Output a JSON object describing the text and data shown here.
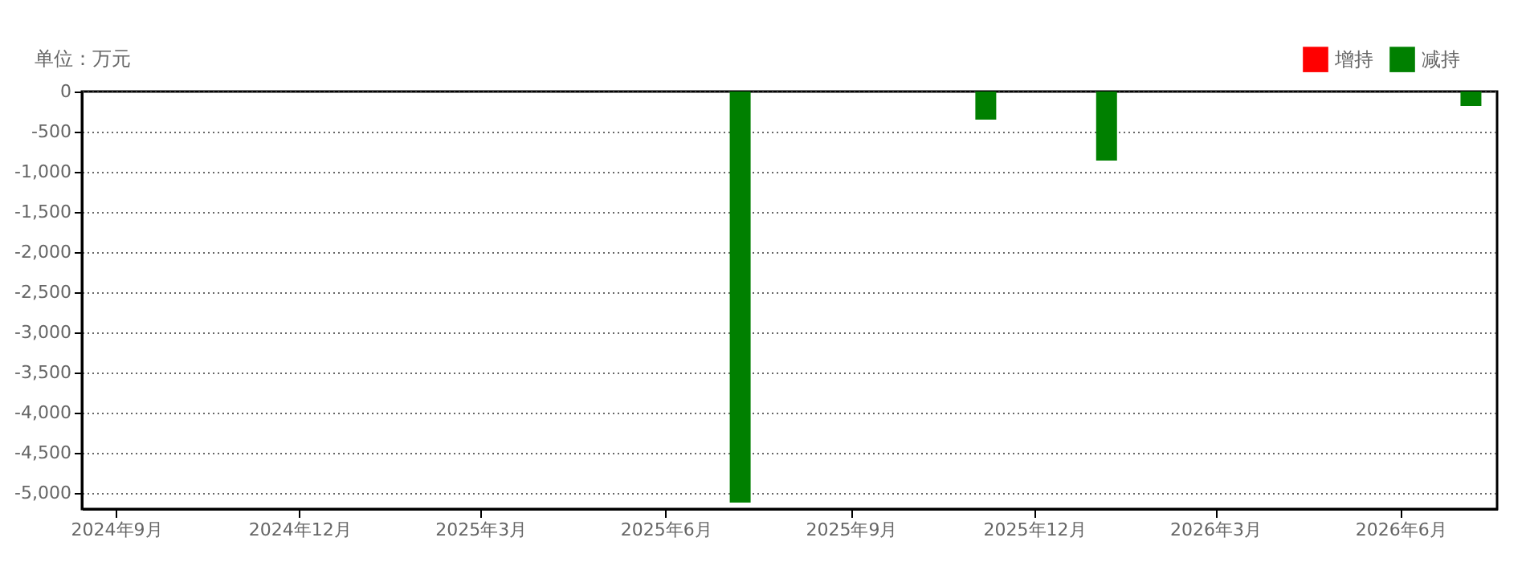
{
  "chart_data": {
    "type": "bar",
    "ylabel": "单位：万元",
    "x": [
      "2025-07-08",
      "2025-11-07",
      "2026-01-06",
      "2026-07-06"
    ],
    "series": [
      {
        "name": "增持",
        "color": "#ff0000",
        "values": [
          null,
          null,
          null,
          null
        ]
      },
      {
        "name": "减持",
        "color": "#008000",
        "values": [
          -5120,
          -350,
          -860,
          -180
        ]
      }
    ],
    "xlim": [
      "2024-08-19",
      "2026-07-15"
    ],
    "xticks": [
      {
        "value": "2024-09-01",
        "label": "2024年9月"
      },
      {
        "value": "2024-12-01",
        "label": "2024年12月"
      },
      {
        "value": "2025-03-01",
        "label": "2025年3月"
      },
      {
        "value": "2025-06-01",
        "label": "2025年6月"
      },
      {
        "value": "2025-09-01",
        "label": "2025年9月"
      },
      {
        "value": "2025-12-01",
        "label": "2025年12月"
      },
      {
        "value": "2026-03-01",
        "label": "2026年3月"
      },
      {
        "value": "2026-06-01",
        "label": "2026年6月"
      }
    ],
    "ylim": [
      -5200,
      0
    ],
    "yticks": [
      {
        "value": 0,
        "label": "0"
      },
      {
        "value": -500,
        "label": "-500"
      },
      {
        "value": -1000,
        "label": "-1,000"
      },
      {
        "value": -1500,
        "label": "-1,500"
      },
      {
        "value": -2000,
        "label": "-2,000"
      },
      {
        "value": -2500,
        "label": "-2,500"
      },
      {
        "value": -3000,
        "label": "-3,000"
      },
      {
        "value": -3500,
        "label": "-3,500"
      },
      {
        "value": -4000,
        "label": "-4,000"
      },
      {
        "value": -4500,
        "label": "-4,500"
      },
      {
        "value": -5000,
        "label": "-5,000"
      }
    ],
    "grid": "y",
    "legend": "top right"
  }
}
